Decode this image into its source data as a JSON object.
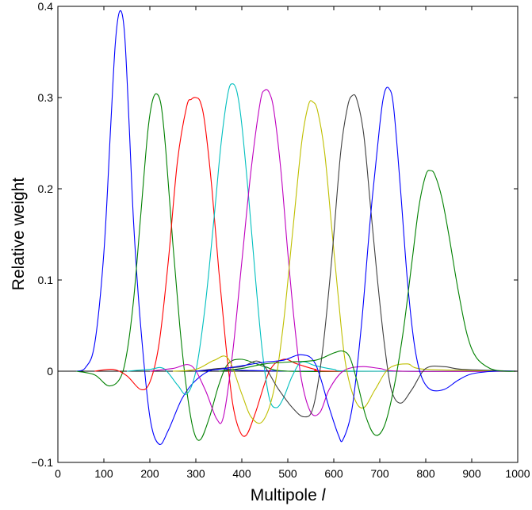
{
  "chart_data": {
    "type": "line",
    "xlabel": "Multipole ",
    "xlabel_italic": "l",
    "ylabel": "Relative weight",
    "xlim": [
      0,
      1000
    ],
    "ylim": [
      -0.1,
      0.4
    ],
    "x_ticks": [
      0,
      100,
      200,
      300,
      400,
      500,
      600,
      700,
      800,
      900,
      1000
    ],
    "x_tick_labels": [
      "0",
      "100",
      "200",
      "300",
      "400",
      "500",
      "600",
      "700",
      "800",
      "900",
      "1000"
    ],
    "y_ticks": [
      -0.1,
      0,
      0.1,
      0.2,
      0.3,
      0.4
    ],
    "y_tick_labels": [
      "−0.1",
      "0",
      "0.1",
      "0.2",
      "0.3",
      "0.4"
    ],
    "grid": false,
    "legend": "none",
    "series": [
      {
        "color": "#0000ff",
        "x": [
          40,
          60,
          80,
          100,
          115,
          125,
          135,
          145,
          155,
          165,
          180,
          200,
          220,
          240,
          270,
          300,
          340,
          400,
          500,
          700,
          1000
        ],
        "y": [
          0,
          0.004,
          0.03,
          0.13,
          0.27,
          0.36,
          0.395,
          0.37,
          0.27,
          0.16,
          0.05,
          -0.05,
          -0.08,
          -0.065,
          -0.03,
          -0.01,
          0.002,
          0.001,
          0,
          0,
          0
        ]
      },
      {
        "color": "#008000",
        "x": [
          40,
          80,
          110,
          135,
          150,
          165,
          180,
          195,
          205,
          215,
          225,
          235,
          250,
          265,
          280,
          295,
          310,
          330,
          350,
          370,
          400,
          450,
          500,
          700,
          1000
        ],
        "y": [
          0,
          -0.004,
          -0.016,
          -0.008,
          0.02,
          0.08,
          0.17,
          0.26,
          0.295,
          0.304,
          0.29,
          0.24,
          0.14,
          0.05,
          -0.02,
          -0.065,
          -0.075,
          -0.05,
          -0.015,
          0.008,
          0.013,
          0.005,
          0,
          0,
          0
        ]
      },
      {
        "color": "#ff0000",
        "x": [
          80,
          120,
          150,
          180,
          200,
          220,
          240,
          260,
          280,
          290,
          300,
          310,
          320,
          335,
          350,
          365,
          380,
          395,
          410,
          430,
          460,
          490,
          520,
          560,
          600,
          1000
        ],
        "y": [
          0,
          0.002,
          -0.005,
          -0.02,
          -0.012,
          0.03,
          0.12,
          0.23,
          0.29,
          0.298,
          0.3,
          0.295,
          0.27,
          0.2,
          0.11,
          0.03,
          -0.035,
          -0.065,
          -0.07,
          -0.045,
          0,
          0.013,
          0.008,
          0.002,
          0,
          0
        ]
      },
      {
        "color": "#00bfbf",
        "x": [
          150,
          200,
          230,
          260,
          280,
          300,
          320,
          340,
          355,
          370,
          380,
          390,
          400,
          415,
          430,
          445,
          460,
          475,
          490,
          510,
          530,
          560,
          600,
          650,
          1000
        ],
        "y": [
          0,
          0.002,
          0.003,
          -0.015,
          -0.025,
          0,
          0.07,
          0.17,
          0.25,
          0.305,
          0.315,
          0.305,
          0.27,
          0.19,
          0.1,
          0.02,
          -0.03,
          -0.04,
          -0.03,
          -0.005,
          0.01,
          0.006,
          0.002,
          0,
          0
        ]
      },
      {
        "color": "#bf00bf",
        "x": [
          200,
          250,
          290,
          320,
          345,
          360,
          380,
          400,
          420,
          440,
          450,
          460,
          470,
          485,
          500,
          515,
          530,
          550,
          570,
          590,
          620,
          660,
          700,
          750,
          1000
        ],
        "y": [
          0,
          0.003,
          0.006,
          -0.02,
          -0.052,
          -0.05,
          0.02,
          0.12,
          0.22,
          0.295,
          0.308,
          0.305,
          0.285,
          0.22,
          0.13,
          0.05,
          -0.01,
          -0.045,
          -0.045,
          -0.02,
          0,
          0.005,
          0.003,
          0,
          0
        ]
      },
      {
        "color": "#bfbf00",
        "x": [
          250,
          300,
          340,
          370,
          400,
          420,
          445,
          470,
          490,
          510,
          530,
          545,
          555,
          565,
          580,
          595,
          610,
          625,
          645,
          665,
          690,
          720,
          760,
          800,
          1000
        ],
        "y": [
          0,
          0.002,
          0.012,
          0.014,
          -0.025,
          -0.05,
          -0.055,
          -0.02,
          0.05,
          0.15,
          0.25,
          0.292,
          0.295,
          0.285,
          0.24,
          0.16,
          0.08,
          0.01,
          -0.03,
          -0.04,
          -0.02,
          0.003,
          0.008,
          0.002,
          0
        ]
      },
      {
        "color": "#404040",
        "x": [
          300,
          350,
          400,
          440,
          480,
          510,
          535,
          555,
          575,
          595,
          615,
          630,
          640,
          650,
          665,
          680,
          695,
          710,
          725,
          745,
          770,
          800,
          840,
          880,
          1000
        ],
        "y": [
          0,
          0.003,
          0.005,
          0.01,
          -0.02,
          -0.04,
          -0.05,
          -0.04,
          0.02,
          0.12,
          0.24,
          0.29,
          0.302,
          0.298,
          0.26,
          0.18,
          0.1,
          0.03,
          -0.02,
          -0.035,
          -0.02,
          0.003,
          0.005,
          0.002,
          0
        ]
      },
      {
        "color": "#0000ff",
        "x": [
          300,
          350,
          400,
          450,
          490,
          530,
          560,
          590,
          610,
          620,
          640,
          660,
          680,
          700,
          710,
          720,
          730,
          745,
          760,
          775,
          790,
          810,
          840,
          870,
          900,
          950,
          1000
        ],
        "y": [
          0,
          0.002,
          0.006,
          0.01,
          0.012,
          0.018,
          0.008,
          -0.04,
          -0.07,
          -0.075,
          -0.04,
          0.05,
          0.17,
          0.27,
          0.305,
          0.31,
          0.29,
          0.2,
          0.1,
          0.03,
          -0.005,
          -0.02,
          -0.02,
          -0.01,
          -0.003,
          0,
          0
        ]
      },
      {
        "color": "#008000",
        "x": [
          350,
          400,
          450,
          500,
          560,
          600,
          620,
          635,
          650,
          670,
          690,
          710,
          730,
          750,
          770,
          785,
          800,
          810,
          820,
          835,
          850,
          870,
          890,
          910,
          940,
          970,
          1000
        ],
        "y": [
          0,
          0.003,
          0.008,
          0.01,
          0.012,
          0.02,
          0.022,
          0.015,
          -0.01,
          -0.05,
          -0.07,
          -0.06,
          -0.02,
          0.04,
          0.12,
          0.18,
          0.215,
          0.22,
          0.215,
          0.19,
          0.15,
          0.09,
          0.04,
          0.015,
          0.003,
          0,
          0
        ]
      }
    ]
  }
}
